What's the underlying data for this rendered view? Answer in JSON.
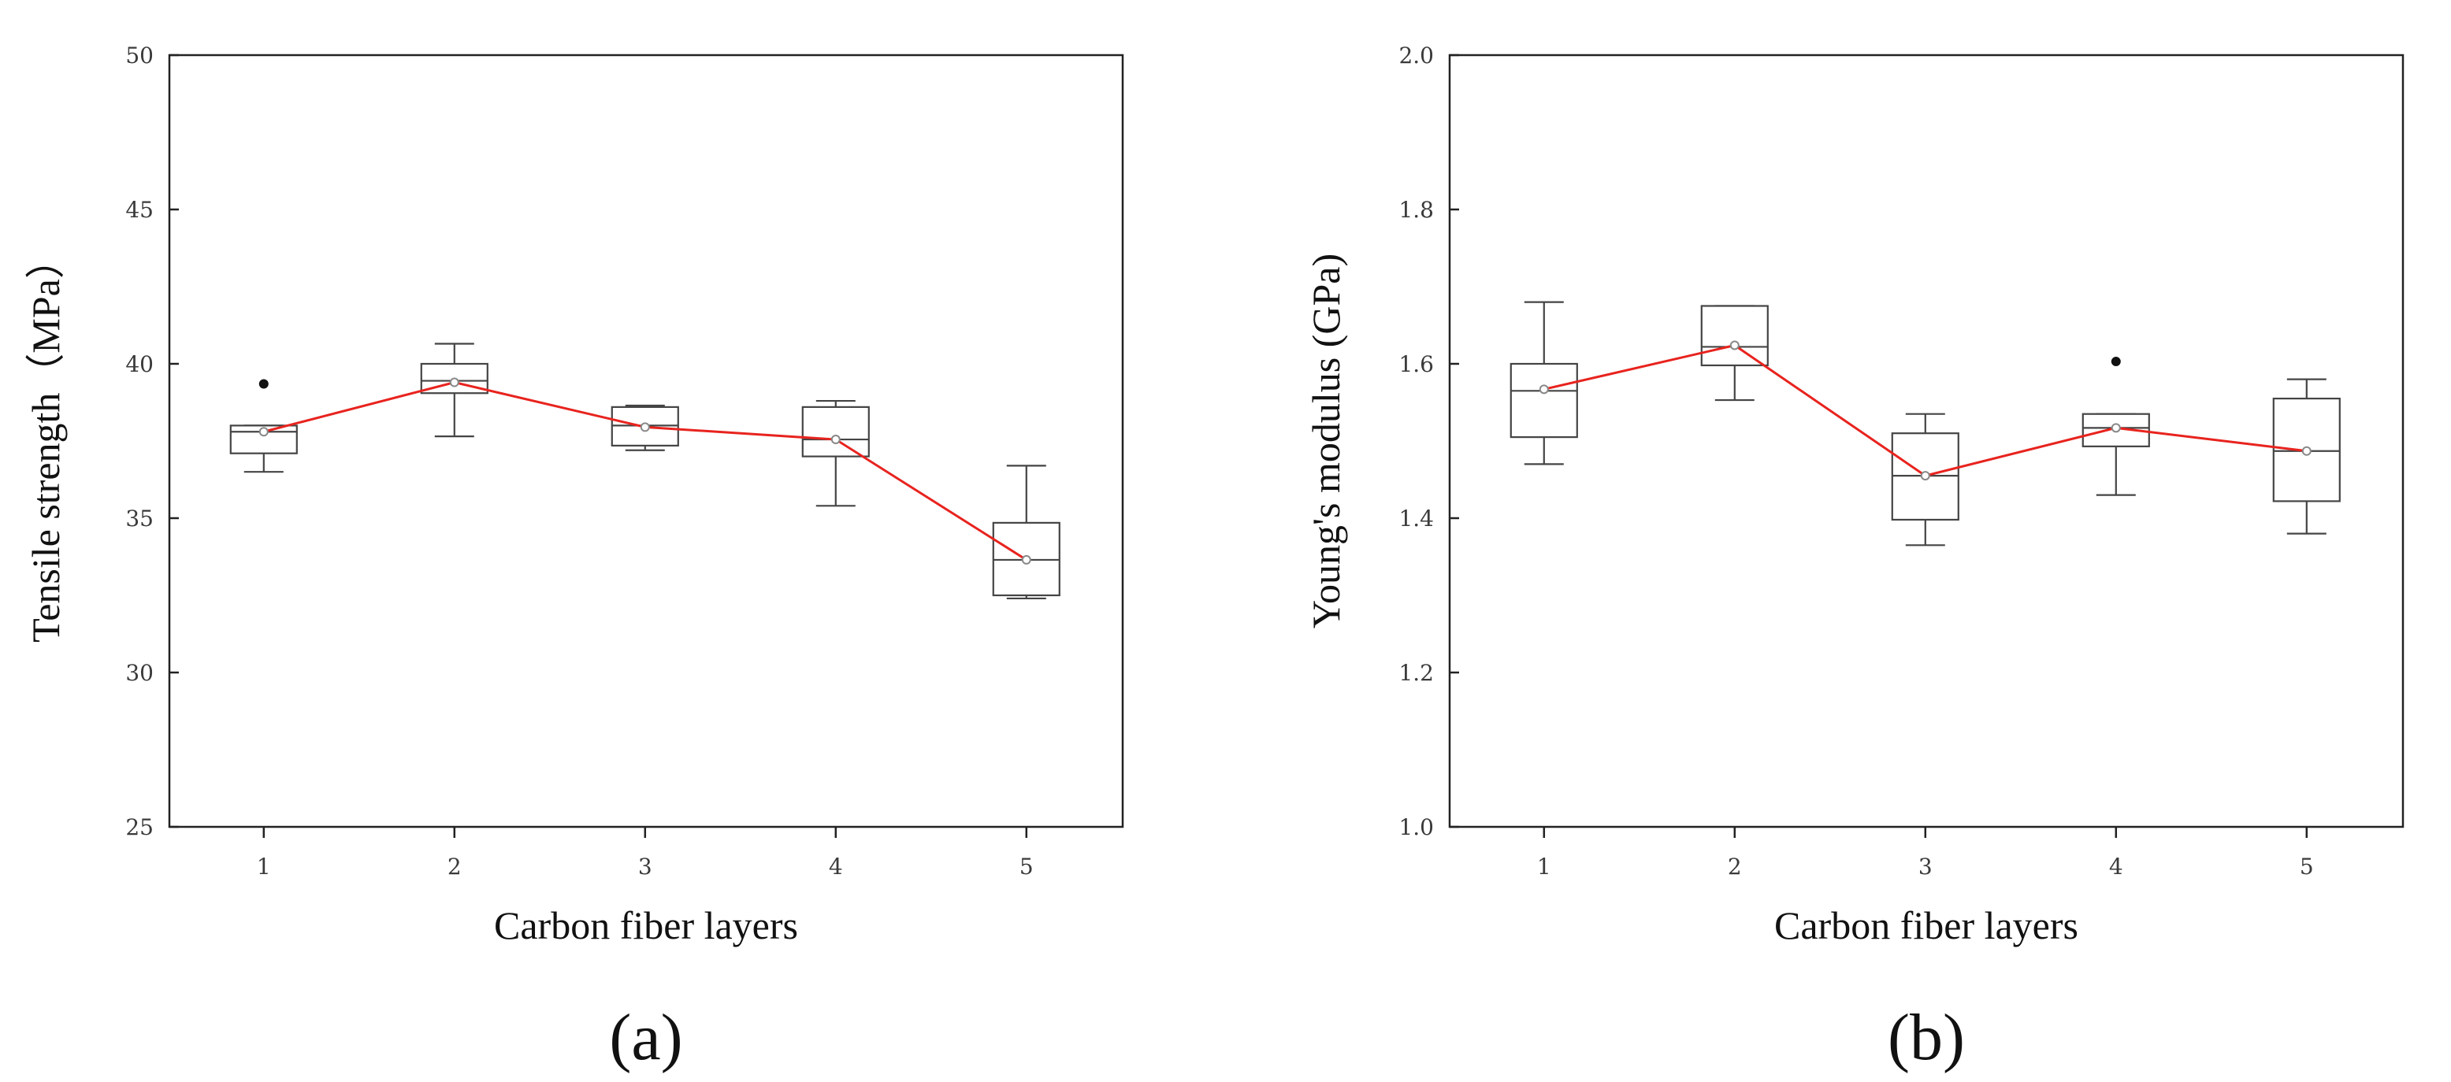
{
  "chart_data": [
    {
      "type": "box",
      "panel_label": "(a)",
      "xlabel": "Carbon fiber layers",
      "ylabel": "Tensile strength（MPa）",
      "ylim": [
        25,
        50
      ],
      "yticks": [
        "25",
        "30",
        "35",
        "40",
        "45",
        "50"
      ],
      "categories": [
        "1",
        "2",
        "3",
        "4",
        "5"
      ],
      "boxes": [
        {
          "whisker_low": 36.5,
          "q1": 37.1,
          "median": 37.8,
          "q3": 38.0,
          "whisker_high": 38.0,
          "mean": 37.8,
          "outliers": [
            39.35
          ]
        },
        {
          "whisker_low": 37.65,
          "q1": 39.05,
          "median": 39.45,
          "q3": 40.0,
          "whisker_high": 40.65,
          "mean": 39.4,
          "outliers": []
        },
        {
          "whisker_low": 37.2,
          "q1": 37.35,
          "median": 38.0,
          "q3": 38.6,
          "whisker_high": 38.65,
          "mean": 37.95,
          "outliers": []
        },
        {
          "whisker_low": 35.4,
          "q1": 37.0,
          "median": 37.55,
          "q3": 38.6,
          "whisker_high": 38.8,
          "mean": 37.55,
          "outliers": []
        },
        {
          "whisker_low": 32.4,
          "q1": 32.5,
          "median": 33.65,
          "q3": 34.85,
          "whisker_high": 36.7,
          "mean": 33.65,
          "outliers": []
        }
      ],
      "mean_line": {
        "color": "#e8231e",
        "values": [
          37.8,
          39.4,
          37.95,
          37.55,
          33.65
        ]
      }
    },
    {
      "type": "box",
      "panel_label": "(b)",
      "xlabel": "Carbon fiber layers",
      "ylabel": "Young's modulus (GPa)",
      "ylim": [
        1.0,
        2.0
      ],
      "yticks": [
        "1.0",
        "1.2",
        "1.4",
        "1.6",
        "1.8",
        "2.0"
      ],
      "categories": [
        "1",
        "2",
        "3",
        "4",
        "5"
      ],
      "boxes": [
        {
          "whisker_low": 1.47,
          "q1": 1.505,
          "median": 1.565,
          "q3": 1.6,
          "whisker_high": 1.68,
          "mean": 1.567,
          "outliers": []
        },
        {
          "whisker_low": 1.553,
          "q1": 1.598,
          "median": 1.622,
          "q3": 1.675,
          "whisker_high": 1.675,
          "mean": 1.624,
          "outliers": []
        },
        {
          "whisker_low": 1.365,
          "q1": 1.398,
          "median": 1.455,
          "q3": 1.51,
          "whisker_high": 1.535,
          "mean": 1.455,
          "outliers": []
        },
        {
          "whisker_low": 1.43,
          "q1": 1.493,
          "median": 1.517,
          "q3": 1.535,
          "whisker_high": 1.535,
          "mean": 1.517,
          "outliers": [
            1.603
          ]
        },
        {
          "whisker_low": 1.38,
          "q1": 1.422,
          "median": 1.487,
          "q3": 1.555,
          "whisker_high": 1.58,
          "mean": 1.487,
          "outliers": []
        }
      ],
      "mean_line": {
        "color": "#e8231e",
        "values": [
          1.567,
          1.624,
          1.455,
          1.517,
          1.487
        ]
      }
    }
  ]
}
